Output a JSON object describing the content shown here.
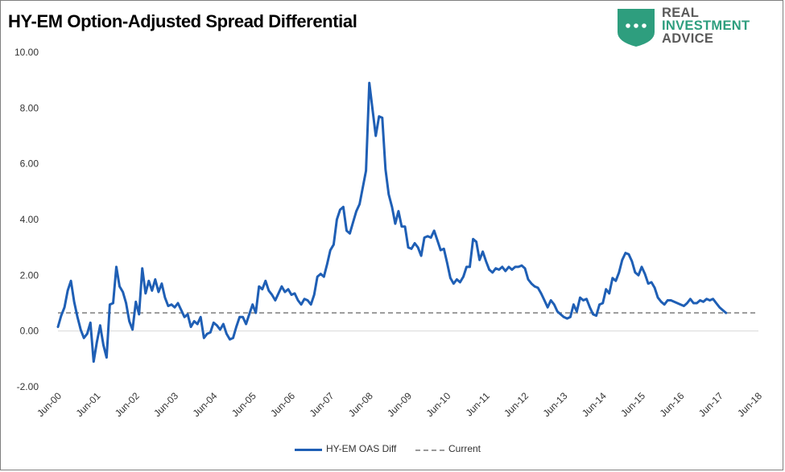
{
  "title": "HY-EM Option-Adjusted Spread Differential",
  "logo": {
    "line1": "REAL",
    "line2": "INVESTMENT",
    "line3": "ADVICE"
  },
  "colors": {
    "series": "#1f5fb5",
    "current": "#999999",
    "logo_green": "#2e9e7e",
    "logo_gray": "#5a5a5a"
  },
  "chart_data": {
    "type": "line",
    "title": "HY-EM Option-Adjusted Spread Differential",
    "xlabel": "",
    "ylabel": "",
    "ylim": [
      -2,
      10
    ],
    "yticks": [
      "10.00",
      "8.00",
      "6.00",
      "4.00",
      "2.00",
      "0.00",
      "-2.00"
    ],
    "xticks": [
      "Jun-00",
      "Jun-01",
      "Jun-02",
      "Jun-03",
      "Jun-04",
      "Jun-05",
      "Jun-06",
      "Jun-07",
      "Jun-08",
      "Jun-09",
      "Jun-10",
      "Jun-11",
      "Jun-12",
      "Jun-13",
      "Jun-14",
      "Jun-15",
      "Jun-16",
      "Jun-17",
      "Jun-18"
    ],
    "grid": false,
    "legend_position": "bottom",
    "series": [
      {
        "name": "HY-EM OAS Diff",
        "style": "solid",
        "points": [
          [
            "Jun-00",
            0.15
          ],
          [
            "Jul-00",
            0.55
          ],
          [
            "Aug-00",
            0.85
          ],
          [
            "Sep-00",
            1.45
          ],
          [
            "Oct-00",
            1.8
          ],
          [
            "Nov-00",
            1.05
          ],
          [
            "Dec-00",
            0.5
          ],
          [
            "Jan-01",
            0.05
          ],
          [
            "Feb-01",
            -0.25
          ],
          [
            "Mar-01",
            -0.1
          ],
          [
            "Apr-01",
            0.3
          ],
          [
            "May-01",
            -1.1
          ],
          [
            "Jun-01",
            -0.4
          ],
          [
            "Jul-01",
            0.2
          ],
          [
            "Aug-01",
            -0.5
          ],
          [
            "Sep-01",
            -0.95
          ],
          [
            "Oct-01",
            0.95
          ],
          [
            "Nov-01",
            1.0
          ],
          [
            "Dec-01",
            2.3
          ],
          [
            "Jan-02",
            1.6
          ],
          [
            "Feb-02",
            1.4
          ],
          [
            "Mar-02",
            1.0
          ],
          [
            "Apr-02",
            0.35
          ],
          [
            "May-02",
            0.05
          ],
          [
            "Jun-02",
            1.05
          ],
          [
            "Jul-02",
            0.6
          ],
          [
            "Aug-02",
            2.25
          ],
          [
            "Sep-02",
            1.35
          ],
          [
            "Oct-02",
            1.8
          ],
          [
            "Nov-02",
            1.45
          ],
          [
            "Dec-02",
            1.85
          ],
          [
            "Jan-03",
            1.4
          ],
          [
            "Feb-03",
            1.7
          ],
          [
            "Mar-03",
            1.2
          ],
          [
            "Apr-03",
            0.9
          ],
          [
            "May-03",
            0.95
          ],
          [
            "Jun-03",
            0.85
          ],
          [
            "Jul-03",
            1.0
          ],
          [
            "Aug-03",
            0.75
          ],
          [
            "Sep-03",
            0.5
          ],
          [
            "Oct-03",
            0.6
          ],
          [
            "Nov-03",
            0.15
          ],
          [
            "Dec-03",
            0.35
          ],
          [
            "Jan-04",
            0.25
          ],
          [
            "Feb-04",
            0.5
          ],
          [
            "Mar-04",
            -0.25
          ],
          [
            "Apr-04",
            -0.1
          ],
          [
            "May-04",
            -0.05
          ],
          [
            "Jun-04",
            0.3
          ],
          [
            "Jul-04",
            0.2
          ],
          [
            "Aug-04",
            0.05
          ],
          [
            "Sep-04",
            0.25
          ],
          [
            "Oct-04",
            -0.1
          ],
          [
            "Nov-04",
            -0.3
          ],
          [
            "Dec-04",
            -0.25
          ],
          [
            "Jan-05",
            0.15
          ],
          [
            "Feb-05",
            0.5
          ],
          [
            "Mar-05",
            0.5
          ],
          [
            "Apr-05",
            0.25
          ],
          [
            "May-05",
            0.6
          ],
          [
            "Jun-05",
            0.95
          ],
          [
            "Jul-05",
            0.65
          ],
          [
            "Aug-05",
            1.6
          ],
          [
            "Sep-05",
            1.5
          ],
          [
            "Oct-05",
            1.8
          ],
          [
            "Nov-05",
            1.45
          ],
          [
            "Dec-05",
            1.3
          ],
          [
            "Jan-06",
            1.1
          ],
          [
            "Feb-06",
            1.35
          ],
          [
            "Mar-06",
            1.6
          ],
          [
            "Apr-06",
            1.4
          ],
          [
            "May-06",
            1.5
          ],
          [
            "Jun-06",
            1.3
          ],
          [
            "Jul-06",
            1.35
          ],
          [
            "Aug-06",
            1.1
          ],
          [
            "Sep-06",
            0.95
          ],
          [
            "Oct-06",
            1.15
          ],
          [
            "Nov-06",
            1.1
          ],
          [
            "Dec-06",
            0.95
          ],
          [
            "Jan-07",
            1.3
          ],
          [
            "Feb-07",
            1.95
          ],
          [
            "Mar-07",
            2.05
          ],
          [
            "Apr-07",
            1.95
          ],
          [
            "May-07",
            2.4
          ],
          [
            "Jun-07",
            2.9
          ],
          [
            "Jul-07",
            3.1
          ],
          [
            "Aug-07",
            4.0
          ],
          [
            "Sep-07",
            4.35
          ],
          [
            "Oct-07",
            4.45
          ],
          [
            "Nov-07",
            3.6
          ],
          [
            "Dec-07",
            3.5
          ],
          [
            "Jan-08",
            3.9
          ],
          [
            "Feb-08",
            4.3
          ],
          [
            "Mar-08",
            4.55
          ],
          [
            "Apr-08",
            5.15
          ],
          [
            "May-08",
            5.75
          ],
          [
            "Jun-08",
            8.9
          ],
          [
            "Jul-08",
            7.95
          ],
          [
            "Aug-08",
            7.0
          ],
          [
            "Sep-08",
            7.7
          ],
          [
            "Oct-08",
            7.65
          ],
          [
            "Nov-08",
            5.8
          ],
          [
            "Dec-08",
            4.9
          ],
          [
            "Jan-09",
            4.45
          ],
          [
            "Feb-09",
            3.85
          ],
          [
            "Mar-09",
            4.3
          ],
          [
            "Apr-09",
            3.75
          ],
          [
            "May-09",
            3.75
          ],
          [
            "Jun-09",
            3.0
          ],
          [
            "Jul-09",
            2.95
          ],
          [
            "Aug-09",
            3.15
          ],
          [
            "Sep-09",
            3.0
          ],
          [
            "Oct-09",
            2.7
          ],
          [
            "Nov-09",
            3.35
          ],
          [
            "Dec-09",
            3.4
          ],
          [
            "Jan-10",
            3.35
          ],
          [
            "Feb-10",
            3.6
          ],
          [
            "Mar-10",
            3.25
          ],
          [
            "Apr-10",
            2.9
          ],
          [
            "May-10",
            2.95
          ],
          [
            "Jun-10",
            2.45
          ],
          [
            "Jul-10",
            1.9
          ],
          [
            "Aug-10",
            1.7
          ],
          [
            "Sep-10",
            1.85
          ],
          [
            "Oct-10",
            1.75
          ],
          [
            "Nov-10",
            1.95
          ],
          [
            "Dec-10",
            2.3
          ],
          [
            "Jan-11",
            2.3
          ],
          [
            "Feb-11",
            3.3
          ],
          [
            "Mar-11",
            3.2
          ],
          [
            "Apr-11",
            2.55
          ],
          [
            "May-11",
            2.85
          ],
          [
            "Jun-11",
            2.5
          ],
          [
            "Jul-11",
            2.2
          ],
          [
            "Aug-11",
            2.1
          ],
          [
            "Sep-11",
            2.25
          ],
          [
            "Oct-11",
            2.2
          ],
          [
            "Nov-11",
            2.3
          ],
          [
            "Dec-11",
            2.15
          ],
          [
            "Jan-12",
            2.3
          ],
          [
            "Feb-12",
            2.2
          ],
          [
            "Mar-12",
            2.3
          ],
          [
            "Apr-12",
            2.3
          ],
          [
            "May-12",
            2.35
          ],
          [
            "Jun-12",
            2.25
          ],
          [
            "Jul-12",
            1.85
          ],
          [
            "Aug-12",
            1.7
          ],
          [
            "Sep-12",
            1.6
          ],
          [
            "Oct-12",
            1.55
          ],
          [
            "Nov-12",
            1.35
          ],
          [
            "Dec-12",
            1.1
          ],
          [
            "Jan-13",
            0.85
          ],
          [
            "Feb-13",
            1.1
          ],
          [
            "Mar-13",
            0.95
          ],
          [
            "Apr-13",
            0.7
          ],
          [
            "May-13",
            0.6
          ],
          [
            "Jun-13",
            0.5
          ],
          [
            "Jul-13",
            0.45
          ],
          [
            "Aug-13",
            0.5
          ],
          [
            "Sep-13",
            0.95
          ],
          [
            "Oct-13",
            0.7
          ],
          [
            "Nov-13",
            1.2
          ],
          [
            "Dec-13",
            1.1
          ],
          [
            "Jan-14",
            1.15
          ],
          [
            "Feb-14",
            0.85
          ],
          [
            "Mar-14",
            0.6
          ],
          [
            "Apr-14",
            0.55
          ],
          [
            "May-14",
            0.95
          ],
          [
            "Jun-14",
            1.0
          ],
          [
            "Jul-14",
            1.5
          ],
          [
            "Aug-14",
            1.35
          ],
          [
            "Sep-14",
            1.9
          ],
          [
            "Oct-14",
            1.8
          ],
          [
            "Nov-14",
            2.1
          ],
          [
            "Dec-14",
            2.55
          ],
          [
            "Jan-15",
            2.8
          ],
          [
            "Feb-15",
            2.75
          ],
          [
            "Mar-15",
            2.5
          ],
          [
            "Apr-15",
            2.1
          ],
          [
            "May-15",
            2.0
          ],
          [
            "Jun-15",
            2.3
          ],
          [
            "Jul-15",
            2.05
          ],
          [
            "Aug-15",
            1.7
          ],
          [
            "Sep-15",
            1.75
          ],
          [
            "Oct-15",
            1.55
          ],
          [
            "Nov-15",
            1.2
          ],
          [
            "Dec-15",
            1.05
          ],
          [
            "Jan-16",
            0.95
          ],
          [
            "Feb-16",
            1.1
          ],
          [
            "Mar-16",
            1.1
          ],
          [
            "Apr-16",
            1.05
          ],
          [
            "May-16",
            1.0
          ],
          [
            "Jun-16",
            0.95
          ],
          [
            "Jul-16",
            0.9
          ],
          [
            "Aug-16",
            1.0
          ],
          [
            "Sep-16",
            1.15
          ],
          [
            "Oct-16",
            1.0
          ],
          [
            "Nov-16",
            1.0
          ],
          [
            "Dec-16",
            1.1
          ],
          [
            "Jan-17",
            1.05
          ],
          [
            "Feb-17",
            1.15
          ],
          [
            "Mar-17",
            1.1
          ],
          [
            "Apr-17",
            1.15
          ],
          [
            "May-17",
            1.0
          ],
          [
            "Jun-17",
            0.85
          ],
          [
            "Jul-17",
            0.75
          ],
          [
            "Aug-17",
            0.65
          ]
        ]
      },
      {
        "name": "Current",
        "style": "dashed",
        "constant": 0.65
      }
    ]
  }
}
